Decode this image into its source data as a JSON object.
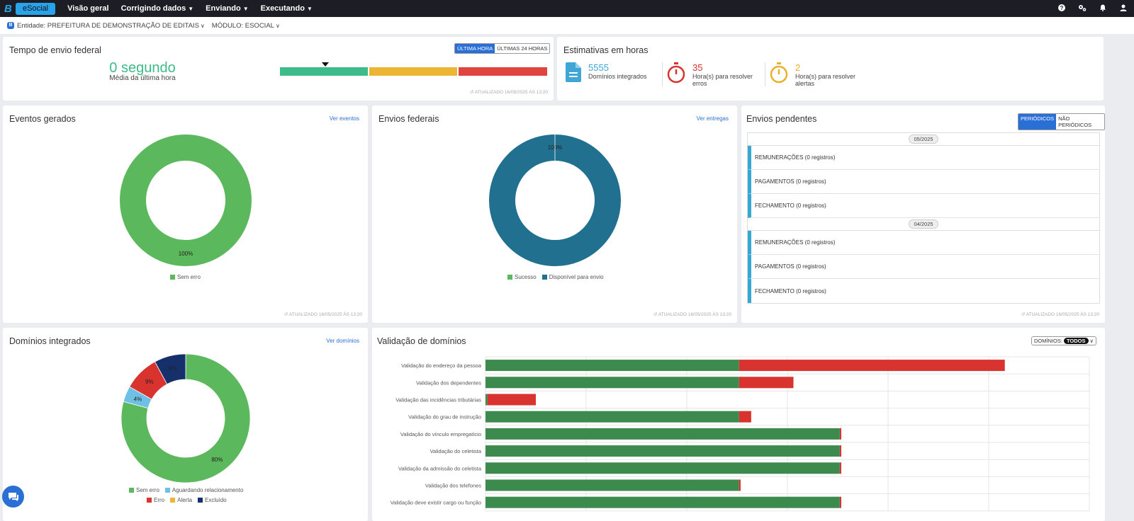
{
  "nav": {
    "brand_letter": "B",
    "brand_pill": "eSocial",
    "items": [
      {
        "label": "Visão geral",
        "dropdown": false
      },
      {
        "label": "Corrigindo dados",
        "dropdown": true
      },
      {
        "label": "Enviando",
        "dropdown": true
      },
      {
        "label": "Executando",
        "dropdown": true
      }
    ],
    "right_icons": [
      "help-icon",
      "settings-icon",
      "bell-icon",
      "user-icon"
    ]
  },
  "entity": {
    "entity_label": "Entidade: PREFEITURA DE DEMONSTRAÇÃO DE EDITAIS",
    "module_label": "MÓDULO: ESOCIAL"
  },
  "tempo": {
    "title": "Tempo de envio federal",
    "value": "0 segundo",
    "caption": "Média da última hora",
    "toggle": [
      "ÚLTIMA HORA",
      "ÚLTIMAS 24 HORAS"
    ],
    "toggle_active": 0,
    "gauge_position": 0.17,
    "gauge_colors": [
      "#3dbb8a",
      "#ecb533",
      "#e0443e"
    ],
    "updated": "ATUALIZADO 16/05/2025 ÀS 13:20"
  },
  "estimativas": {
    "title": "Estimativas em horas",
    "items": [
      {
        "value": "5555",
        "label": "Domínios integrados",
        "color": "#3fa6d6",
        "icon": "document-icon"
      },
      {
        "value": "35",
        "label": "Hora(s) para resolver erros",
        "color": "#d9332f",
        "icon": "stopwatch-icon"
      },
      {
        "value": "2",
        "label": "Hora(s) para resolver alertas",
        "color": "#e8b12a",
        "icon": "stopwatch-icon"
      }
    ]
  },
  "eventos": {
    "title": "Eventos gerados",
    "link": "Ver eventos",
    "center_label": "100%",
    "legend": [
      {
        "label": "Sem erro",
        "color": "#5cb85c"
      }
    ],
    "updated": "ATUALIZADO 16/05/2025 ÀS 13:20"
  },
  "envios": {
    "title": "Envios federais",
    "link": "Ver entregas",
    "center_label": "100%",
    "legend": [
      {
        "label": "Sucesso",
        "color": "#5cb85c"
      },
      {
        "label": "Disponível para envio",
        "color": "#21708f"
      }
    ],
    "updated": "ATUALIZADO 16/05/2025 ÀS 13:20"
  },
  "pendentes": {
    "title": "Envios pendentes",
    "toggle": [
      "PERIÓDICOS",
      "NÃO PERIÓDICOS"
    ],
    "toggle_active": 0,
    "groups": [
      {
        "month": "05/2025",
        "rows": [
          "REMUNERAÇÕES (0 registros)",
          "PAGAMENTOS (0 registros)",
          "FECHAMENTO (0 registros)"
        ]
      },
      {
        "month": "04/2025",
        "rows": [
          "REMUNERAÇÕES (0 registros)",
          "PAGAMENTOS (0 registros)",
          "FECHAMENTO (0 registros)"
        ]
      }
    ],
    "updated": "ATUALIZADO 16/05/2025 ÀS 13:20"
  },
  "dominios": {
    "title": "Domínios integrados",
    "link": "Ver domínios",
    "legend_row1": [
      {
        "label": "Sem erro",
        "color": "#5cb85c"
      },
      {
        "label": "Aguardando relacionamento",
        "color": "#6ec1e4"
      }
    ],
    "legend_row2": [
      {
        "label": "Erro",
        "color": "#d9332f"
      },
      {
        "label": "Alerta",
        "color": "#ecb533"
      },
      {
        "label": "Excluído",
        "color": "#15306b"
      }
    ]
  },
  "validacao": {
    "title": "Validação de domínios",
    "filter_label": "DOMÍNIOS:",
    "filter_value": "TODOS"
  },
  "chart_data": [
    {
      "type": "pie",
      "title": "Eventos gerados",
      "labels": [
        "Sem erro"
      ],
      "values": [
        100
      ],
      "data_labels": [
        "100%"
      ],
      "colors": [
        "#5cb85c"
      ]
    },
    {
      "type": "pie",
      "title": "Envios federais",
      "labels": [
        "Sucesso",
        "Disponível para envio"
      ],
      "values": [
        0,
        100
      ],
      "data_labels": [
        "100%"
      ],
      "colors": [
        "#5cb85c",
        "#21708f"
      ]
    },
    {
      "type": "pie",
      "title": "Domínios integrados",
      "labels": [
        "Sem erro",
        "Aguardando relacionamento",
        "Erro",
        "Alerta",
        "Excluído"
      ],
      "values": [
        80,
        4,
        9,
        0,
        8
      ],
      "data_labels": [
        "80%",
        "4%",
        "9%",
        "",
        "8%"
      ],
      "colors": [
        "#5cb85c",
        "#6ec1e4",
        "#d9332f",
        "#ecb533",
        "#15306b"
      ]
    },
    {
      "type": "bar",
      "orientation": "horizontal",
      "stacked": true,
      "title": "Validação de domínios",
      "categories": [
        "Validação do endereço da pessoa",
        "Validação dos dependentes",
        "Validação das incidências tributárias",
        "Validação do grau de instrução",
        "Validação do vínculo empregatício",
        "Validação do celetista",
        "Validação da admissão do celetista",
        "Validação dos telefones",
        "Validação deve existir cargo ou função"
      ],
      "series": [
        {
          "values": [
            2520,
            2520,
            20,
            2520,
            3520,
            3520,
            3520,
            2520,
            3520
          ],
          "color": "#3d8a4e"
        },
        {
          "values": [
            2640,
            540,
            480,
            120,
            15,
            15,
            15,
            15,
            15
          ],
          "color": "#d9332f"
        }
      ],
      "xlim": [
        0,
        6000
      ],
      "grid": true
    }
  ]
}
